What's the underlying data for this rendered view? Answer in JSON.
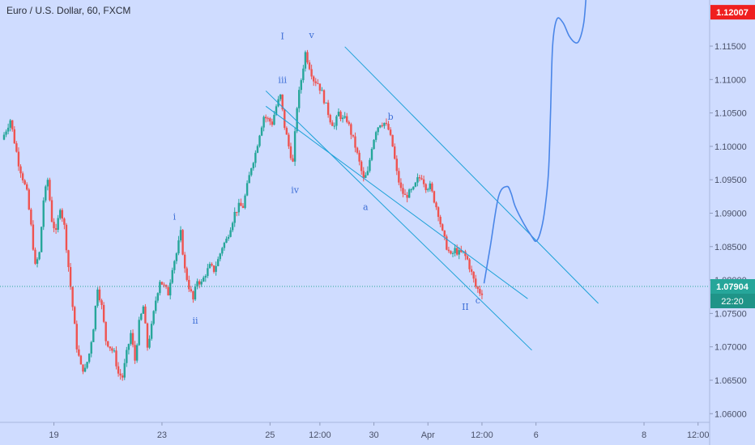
{
  "chart_data": {
    "type": "candlestick",
    "title": "Euro / U.S. Dollar, 60, FXCM",
    "y_ticks": [
      "1.11500",
      "1.11000",
      "1.10500",
      "1.10000",
      "1.09500",
      "1.09000",
      "1.08500",
      "1.08000",
      "1.07500",
      "1.07000",
      "1.06500",
      "1.06000"
    ],
    "ylim": [
      1.0587,
      1.1219
    ],
    "x_ticks": [
      {
        "label": "19",
        "t": 12
      },
      {
        "label": "23",
        "t": 38
      },
      {
        "label": "25",
        "t": 64
      },
      {
        "label": "12:00",
        "t": 76
      },
      {
        "label": "30",
        "t": 89
      },
      {
        "label": "Apr",
        "t": 102
      },
      {
        "label": "12:00",
        "t": 115
      },
      {
        "label": "6",
        "t": 128
      },
      {
        "label": "8",
        "t": 154
      },
      {
        "label": "12:00",
        "t": 167
      }
    ],
    "price_path": [
      [
        0,
        1.101
      ],
      [
        2,
        1.104
      ],
      [
        4,
        1.0975
      ],
      [
        6,
        1.093
      ],
      [
        7,
        1.088
      ],
      [
        8,
        1.082
      ],
      [
        9,
        1.084
      ],
      [
        10,
        1.092
      ],
      [
        11,
        1.095
      ],
      [
        12,
        1.089
      ],
      [
        13,
        1.087
      ],
      [
        14,
        1.091
      ],
      [
        15,
        1.088
      ],
      [
        16,
        1.082
      ],
      [
        17,
        1.076
      ],
      [
        18,
        1.07
      ],
      [
        19,
        1.067
      ],
      [
        20,
        1.0665
      ],
      [
        21,
        1.069
      ],
      [
        22,
        1.073
      ],
      [
        23,
        1.079
      ],
      [
        24,
        1.076
      ],
      [
        25,
        1.071
      ],
      [
        26,
        1.07
      ],
      [
        27,
        1.069
      ],
      [
        28,
        1.066
      ],
      [
        29,
        1.0655
      ],
      [
        30,
        1.069
      ],
      [
        31,
        1.072
      ],
      [
        32,
        1.068
      ],
      [
        33,
        1.0735
      ],
      [
        34,
        1.076
      ],
      [
        35,
        1.07
      ],
      [
        36,
        1.073
      ],
      [
        37,
        1.077
      ],
      [
        38,
        1.08
      ],
      [
        39,
        1.079
      ],
      [
        40,
        1.078
      ],
      [
        41,
        1.082
      ],
      [
        42,
        1.084
      ],
      [
        43,
        1.087
      ],
      [
        44,
        1.0815
      ],
      [
        45,
        1.079
      ],
      [
        46,
        1.077
      ],
      [
        47,
        1.08
      ],
      [
        48,
        1.0795
      ],
      [
        49,
        1.081
      ],
      [
        50,
        1.082
      ],
      [
        51,
        1.0815
      ],
      [
        52,
        1.083
      ],
      [
        53,
        1.085
      ],
      [
        54,
        1.086
      ],
      [
        55,
        1.088
      ],
      [
        56,
        1.09
      ],
      [
        57,
        1.091
      ],
      [
        58,
        1.091
      ],
      [
        59,
        1.094
      ],
      [
        60,
        1.097
      ],
      [
        61,
        1.099
      ],
      [
        62,
        1.102
      ],
      [
        63,
        1.1045
      ],
      [
        64,
        1.104
      ],
      [
        65,
        1.1035
      ],
      [
        66,
        1.106
      ],
      [
        67,
        1.1075
      ],
      [
        68,
        1.103
      ],
      [
        69,
        1.1
      ],
      [
        70,
        1.0975
      ],
      [
        71,
        1.106
      ],
      [
        72,
        1.11
      ],
      [
        73,
        1.114
      ],
      [
        74,
        1.112
      ],
      [
        75,
        1.11
      ],
      [
        76,
        1.1095
      ],
      [
        77,
        1.108
      ],
      [
        78,
        1.106
      ],
      [
        79,
        1.104
      ],
      [
        80,
        1.103
      ],
      [
        81,
        1.105
      ],
      [
        82,
        1.104
      ],
      [
        83,
        1.104
      ],
      [
        84,
        1.102
      ],
      [
        85,
        1.1
      ],
      [
        86,
        1.0975
      ],
      [
        87,
        1.095
      ],
      [
        88,
        1.096
      ],
      [
        89,
        1.1
      ],
      [
        90,
        1.1025
      ],
      [
        91,
        1.1035
      ],
      [
        92,
        1.1035
      ],
      [
        93,
        1.1025
      ],
      [
        94,
        1.1
      ],
      [
        95,
        1.096
      ],
      [
        96,
        1.0935
      ],
      [
        97,
        1.0925
      ],
      [
        98,
        1.093
      ],
      [
        99,
        1.0935
      ],
      [
        100,
        1.095
      ],
      [
        101,
        1.0955
      ],
      [
        102,
        1.094
      ],
      [
        103,
        1.094
      ],
      [
        104,
        1.092
      ],
      [
        105,
        1.09
      ],
      [
        106,
        1.087
      ],
      [
        107,
        1.085
      ],
      [
        108,
        1.0835
      ],
      [
        109,
        1.0845
      ],
      [
        110,
        1.084
      ],
      [
        111,
        1.084
      ],
      [
        112,
        1.083
      ],
      [
        113,
        1.081
      ],
      [
        114,
        1.079
      ],
      [
        115,
        1.0782
      ]
    ],
    "current_price": {
      "label": "1.07904",
      "value": 1.07904,
      "countdown": "22:20"
    },
    "top_price": {
      "label": "1.12007",
      "value": 1.12007
    },
    "channel": {
      "upper": [
        [
          82,
          1.1149
        ],
        [
          143,
          1.0765
        ]
      ],
      "lower": [
        [
          63,
          1.1083
        ],
        [
          127,
          1.0695
        ]
      ],
      "mid": [
        [
          63,
          1.106
        ],
        [
          126,
          1.0772
        ]
      ]
    },
    "projection": [
      [
        115.5,
        1.0795
      ],
      [
        117,
        1.085
      ],
      [
        119,
        1.0925
      ],
      [
        121,
        1.094
      ],
      [
        122,
        1.093
      ],
      [
        123,
        1.091
      ],
      [
        125,
        1.0885
      ],
      [
        127,
        1.0865
      ],
      [
        128,
        1.0858
      ],
      [
        129,
        1.087
      ],
      [
        130,
        1.09
      ],
      [
        131,
        1.096
      ],
      [
        131.5,
        1.105
      ],
      [
        132,
        1.115
      ],
      [
        133,
        1.119
      ],
      [
        134.5,
        1.1185
      ],
      [
        136,
        1.1165
      ],
      [
        137.5,
        1.1155
      ],
      [
        138.5,
        1.116
      ],
      [
        139.5,
        1.1185
      ],
      [
        140,
        1.1219
      ]
    ],
    "annotations": [
      {
        "text": "I",
        "t": 67,
        "y": 1.116
      },
      {
        "text": "v",
        "t": 74,
        "y": 1.1162
      },
      {
        "text": "iii",
        "t": 67,
        "y": 1.1095
      },
      {
        "text": "iv",
        "t": 70,
        "y": 1.093
      },
      {
        "text": "i",
        "t": 41,
        "y": 1.089
      },
      {
        "text": "ii",
        "t": 46,
        "y": 1.0735
      },
      {
        "text": "a",
        "t": 87,
        "y": 1.0905
      },
      {
        "text": "b",
        "t": 93,
        "y": 1.104
      },
      {
        "text": "c",
        "t": 114,
        "y": 1.0765
      },
      {
        "text": "II",
        "t": 111,
        "y": 1.0755
      }
    ]
  }
}
